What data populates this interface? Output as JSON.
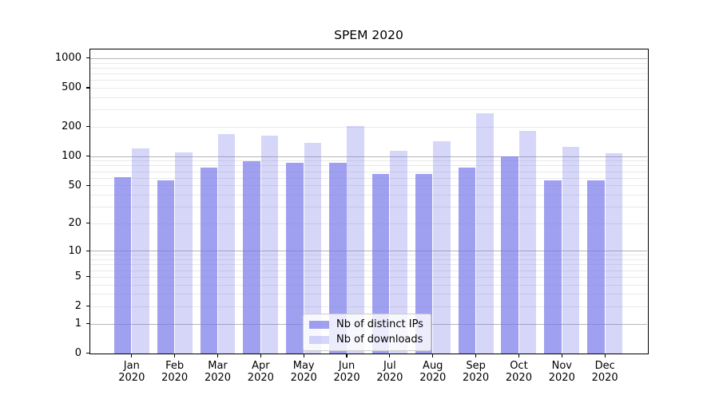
{
  "chart_data": {
    "type": "bar",
    "title": "SPEM 2020",
    "scale": "symlog (position = bottom - K*ln(1+value))",
    "categories": [
      "Jan 2020",
      "Feb 2020",
      "Mar 2020",
      "Apr 2020",
      "May 2020",
      "Jun 2020",
      "Jul 2020",
      "Aug 2020",
      "Sep 2020",
      "Oct 2020",
      "Nov 2020",
      "Dec 2020"
    ],
    "series": [
      {
        "name": "Nb of distinct IPs",
        "color": "rgba(120,120,235,0.70)",
        "values": [
          61,
          56,
          76,
          88,
          85,
          86,
          66,
          66,
          76,
          99,
          56,
          56
        ]
      },
      {
        "name": "Nb of downloads",
        "color": "rgba(120,120,235,0.30)",
        "values": [
          120,
          110,
          169,
          162,
          138,
          202,
          113,
          143,
          272,
          183,
          124,
          108
        ]
      }
    ],
    "y_ticks": [
      0,
      1,
      2,
      5,
      10,
      20,
      50,
      100,
      200,
      500,
      1000
    ],
    "y_major_gridlines": [
      1,
      10,
      100,
      1000
    ],
    "ylim": [
      0,
      1200
    ],
    "grid": true,
    "xlabel": "",
    "ylabel": "",
    "legend_position": "lower center"
  },
  "colors": {
    "bar_base": "#7878eb",
    "major_grid": "#b5b5b5",
    "minor_grid": "#e9e9e9",
    "axis": "#000000",
    "background": "#ffffff",
    "legend_border": "#cccccc",
    "legend_bg": "rgba(255,255,255,0.8)"
  }
}
